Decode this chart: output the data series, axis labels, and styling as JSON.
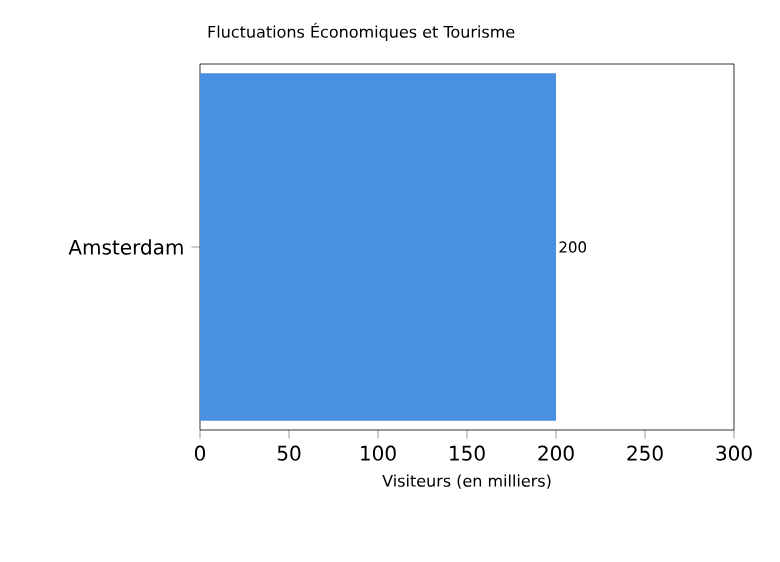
{
  "chart_data": {
    "type": "bar",
    "orientation": "horizontal",
    "title": "Fluctuations Économiques et Tourisme",
    "xlabel": "Visiteurs (en milliers)",
    "categories": [
      "Amsterdam"
    ],
    "values": [
      200
    ],
    "color": "#4a90e2",
    "value_labels": [
      "200"
    ],
    "xlim": [
      0,
      300
    ],
    "xticks": [
      0,
      50,
      100,
      150,
      200,
      250,
      300
    ]
  }
}
